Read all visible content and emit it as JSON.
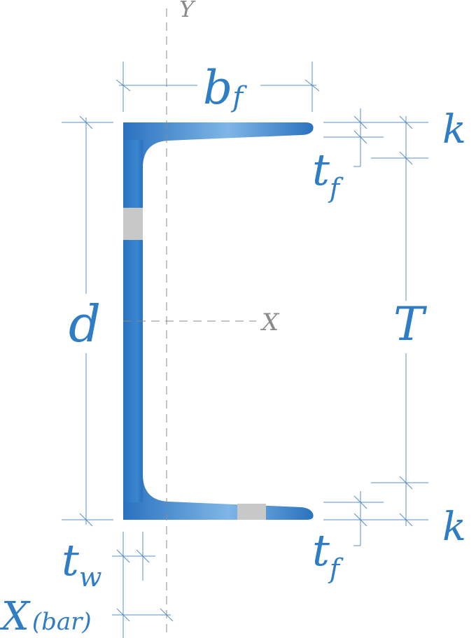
{
  "labels": {
    "y_axis": "Y",
    "x_axis": "X",
    "flange_width": "b",
    "flange_width_sub": "f",
    "depth": "d",
    "k_top": "k",
    "k_bottom": "k",
    "flange_thickness": "t",
    "flange_thickness_sub": "f",
    "T": "T",
    "web_thickness": "t",
    "web_thickness_sub": "w",
    "xbar": "X",
    "xbar_sub": "(bar)"
  },
  "colors": {
    "steel_dark": "#2a72bf",
    "steel_light": "#8ec0ea",
    "label": "#2f7dc4",
    "dimension_line": "#5a8fc4",
    "axis": "#8a8a8a",
    "cut_mark": "#c8c8c8"
  }
}
